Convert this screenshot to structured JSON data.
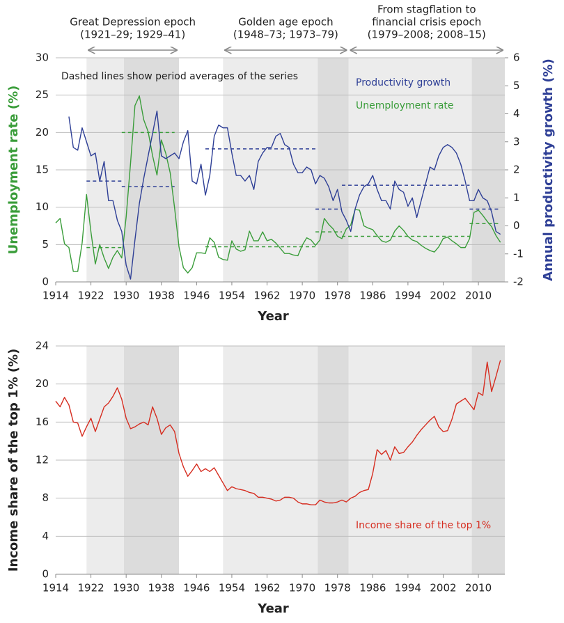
{
  "chart_data": [
    {
      "type": "line",
      "xlabel": "Year",
      "ylabel": "Unemployment rate (%)",
      "y2label": "Annual productivity growth (%)",
      "note": "Dashed lines show period averages of the series",
      "epochs": [
        {
          "lines": [
            "Great Depression epoch",
            "(1921–29; 1929–41)"
          ],
          "periods": [
            1921,
            1929.5,
            1942
          ]
        },
        {
          "lines": [
            "Golden age epoch",
            "(1948–73; 1973–79)"
          ],
          "periods": [
            1952,
            1973.5,
            1980.5
          ]
        },
        {
          "lines": [
            "From stagflation to",
            "financial crisis epoch",
            "(1979–2008; 2008–15)"
          ],
          "periods": [
            1980.5,
            2008.5,
            2016
          ]
        }
      ],
      "xlim": [
        1914,
        2016
      ],
      "xticks": [
        1914,
        1922,
        1930,
        1938,
        1946,
        1954,
        1962,
        1970,
        1978,
        1986,
        1994,
        2002,
        2010
      ],
      "ylim": [
        0,
        30
      ],
      "yticks": [
        0,
        5,
        10,
        15,
        20,
        25,
        30
      ],
      "y2lim": [
        -2,
        6
      ],
      "y2ticks": [
        -2,
        -1,
        0,
        1,
        2,
        3,
        4,
        5,
        6
      ],
      "grid": true,
      "x": [
        1914,
        1915,
        1916,
        1917,
        1918,
        1919,
        1920,
        1921,
        1922,
        1923,
        1924,
        1925,
        1926,
        1927,
        1928,
        1929,
        1930,
        1931,
        1932,
        1933,
        1934,
        1935,
        1936,
        1937,
        1938,
        1939,
        1940,
        1941,
        1942,
        1943,
        1944,
        1945,
        1946,
        1947,
        1948,
        1949,
        1950,
        1951,
        1952,
        1953,
        1954,
        1955,
        1956,
        1957,
        1958,
        1959,
        1960,
        1961,
        1962,
        1963,
        1964,
        1965,
        1966,
        1967,
        1968,
        1969,
        1970,
        1971,
        1972,
        1973,
        1974,
        1975,
        1976,
        1977,
        1978,
        1979,
        1980,
        1981,
        1982,
        1983,
        1984,
        1985,
        1986,
        1987,
        1988,
        1989,
        1990,
        1991,
        1992,
        1993,
        1994,
        1995,
        1996,
        1997,
        1998,
        1999,
        2000,
        2001,
        2002,
        2003,
        2004,
        2005,
        2006,
        2007,
        2008,
        2009,
        2010,
        2011,
        2012,
        2013,
        2014,
        2015
      ],
      "series": [
        {
          "name": "Unemployment rate",
          "color": "#3a9d3a",
          "values": [
            7.9,
            8.5,
            5.1,
            4.6,
            1.4,
            1.4,
            5.2,
            11.7,
            6.7,
            2.4,
            5.0,
            3.2,
            1.8,
            3.3,
            4.2,
            3.2,
            8.7,
            15.9,
            23.6,
            24.9,
            21.7,
            20.1,
            16.9,
            14.3,
            19.0,
            17.2,
            14.6,
            9.9,
            4.7,
            1.9,
            1.2,
            1.9,
            3.9,
            3.9,
            3.8,
            5.9,
            5.3,
            3.3,
            3.0,
            2.9,
            5.5,
            4.4,
            4.1,
            4.3,
            6.8,
            5.5,
            5.5,
            6.7,
            5.5,
            5.7,
            5.2,
            4.5,
            3.8,
            3.8,
            3.6,
            3.5,
            4.9,
            5.9,
            5.6,
            4.9,
            5.6,
            8.5,
            7.7,
            7.1,
            6.1,
            5.8,
            7.1,
            7.6,
            9.7,
            9.6,
            7.5,
            7.2,
            7.0,
            6.2,
            5.5,
            5.3,
            5.6,
            6.8,
            7.5,
            6.9,
            6.1,
            5.6,
            5.4,
            4.9,
            4.5,
            4.2,
            4.0,
            4.7,
            5.8,
            6.0,
            5.5,
            5.1,
            4.6,
            4.6,
            5.8,
            9.3,
            9.6,
            8.9,
            8.1,
            7.4,
            6.2,
            5.3
          ]
        },
        {
          "name": "Productivity growth",
          "color": "#2e3f96",
          "axis": "y2",
          "values": [
            null,
            null,
            null,
            3.9,
            2.8,
            2.7,
            3.5,
            3.0,
            2.5,
            2.6,
            1.6,
            2.3,
            0.9,
            0.9,
            0.2,
            -0.2,
            -1.4,
            -1.9,
            -0.5,
            0.8,
            1.7,
            2.5,
            3.3,
            4.1,
            2.5,
            2.4,
            2.5,
            2.6,
            2.4,
            3.0,
            3.4,
            1.6,
            1.5,
            2.2,
            1.1,
            1.8,
            3.2,
            3.6,
            3.5,
            3.5,
            2.6,
            1.8,
            1.8,
            1.6,
            1.8,
            1.3,
            2.3,
            2.6,
            2.8,
            2.8,
            3.2,
            3.3,
            2.9,
            2.8,
            2.2,
            1.9,
            1.9,
            2.1,
            2.0,
            1.5,
            1.8,
            1.7,
            1.4,
            0.9,
            1.3,
            0.5,
            0.2,
            -0.2,
            0.6,
            1.1,
            1.4,
            1.5,
            1.8,
            1.3,
            0.9,
            0.9,
            0.6,
            1.6,
            1.3,
            1.2,
            0.7,
            1.0,
            0.3,
            0.9,
            1.5,
            2.1,
            2.0,
            2.5,
            2.8,
            2.9,
            2.8,
            2.6,
            2.2,
            1.6,
            0.9,
            0.9,
            1.3,
            1.0,
            0.9,
            0.5,
            -0.2,
            -0.3
          ]
        }
      ],
      "averages": {
        "periods": [
          [
            1921,
            1929
          ],
          [
            1929,
            1941
          ],
          [
            1948,
            1973
          ],
          [
            1973,
            1979
          ],
          [
            1979,
            2008
          ],
          [
            2008,
            2015
          ]
        ],
        "unemployment": [
          4.6,
          20.0,
          4.7,
          6.7,
          6.1,
          7.8
        ],
        "productivity": [
          1.6,
          1.4,
          2.75,
          0.6,
          1.45,
          0.6
        ]
      }
    },
    {
      "type": "line",
      "xlabel": "Year",
      "ylabel": "Income share of the top 1% (%)",
      "shading": [
        [
          1921,
          1929.5,
          1942
        ],
        [
          1952,
          1973.5,
          1980.5
        ],
        [
          1980.5,
          2008.5,
          2016
        ]
      ],
      "xlim": [
        1914,
        2016
      ],
      "xticks": [
        1914,
        1922,
        1930,
        1938,
        1946,
        1954,
        1962,
        1970,
        1978,
        1986,
        1994,
        2002,
        2010
      ],
      "ylim": [
        0,
        24
      ],
      "yticks": [
        0,
        4,
        8,
        12,
        16,
        20,
        24
      ],
      "grid": true,
      "x": [
        1914,
        1915,
        1916,
        1917,
        1918,
        1919,
        1920,
        1921,
        1922,
        1923,
        1924,
        1925,
        1926,
        1927,
        1928,
        1929,
        1930,
        1931,
        1932,
        1933,
        1934,
        1935,
        1936,
        1937,
        1938,
        1939,
        1940,
        1941,
        1942,
        1943,
        1944,
        1945,
        1946,
        1947,
        1948,
        1949,
        1950,
        1951,
        1952,
        1953,
        1954,
        1955,
        1956,
        1957,
        1958,
        1959,
        1960,
        1961,
        1962,
        1963,
        1964,
        1965,
        1966,
        1967,
        1968,
        1969,
        1970,
        1971,
        1972,
        1973,
        1974,
        1975,
        1976,
        1977,
        1978,
        1979,
        1980,
        1981,
        1982,
        1983,
        1984,
        1985,
        1986,
        1987,
        1988,
        1989,
        1990,
        1991,
        1992,
        1993,
        1994,
        1995,
        1996,
        1997,
        1998,
        1999,
        2000,
        2001,
        2002,
        2003,
        2004,
        2005,
        2006,
        2007,
        2008,
        2009,
        2010,
        2011,
        2012,
        2013,
        2014,
        2015
      ],
      "series": [
        {
          "name": "Income share of the top 1%",
          "color": "#d62d20",
          "values": [
            18.2,
            17.6,
            18.6,
            17.8,
            16.0,
            15.9,
            14.5,
            15.5,
            16.4,
            15.0,
            16.3,
            17.6,
            18.0,
            18.7,
            19.6,
            18.4,
            16.4,
            15.3,
            15.5,
            15.8,
            16.0,
            15.7,
            17.6,
            16.4,
            14.7,
            15.4,
            15.7,
            15.0,
            12.7,
            11.3,
            10.3,
            10.9,
            11.6,
            10.8,
            11.1,
            10.8,
            11.2,
            10.4,
            9.6,
            8.8,
            9.2,
            9.0,
            8.9,
            8.8,
            8.6,
            8.5,
            8.1,
            8.1,
            8.0,
            7.9,
            7.7,
            7.8,
            8.1,
            8.1,
            8.0,
            7.6,
            7.4,
            7.4,
            7.3,
            7.3,
            7.8,
            7.6,
            7.5,
            7.5,
            7.6,
            7.8,
            7.6,
            8.0,
            8.2,
            8.6,
            8.8,
            8.9,
            10.6,
            13.1,
            12.6,
            13.0,
            12.0,
            13.4,
            12.7,
            12.8,
            13.4,
            13.9,
            14.6,
            15.2,
            15.7,
            16.2,
            16.6,
            15.5,
            15.0,
            15.1,
            16.3,
            17.9,
            18.2,
            18.5,
            17.9,
            17.3,
            19.1,
            18.8,
            22.3,
            19.2,
            20.8,
            22.5
          ]
        }
      ]
    }
  ]
}
